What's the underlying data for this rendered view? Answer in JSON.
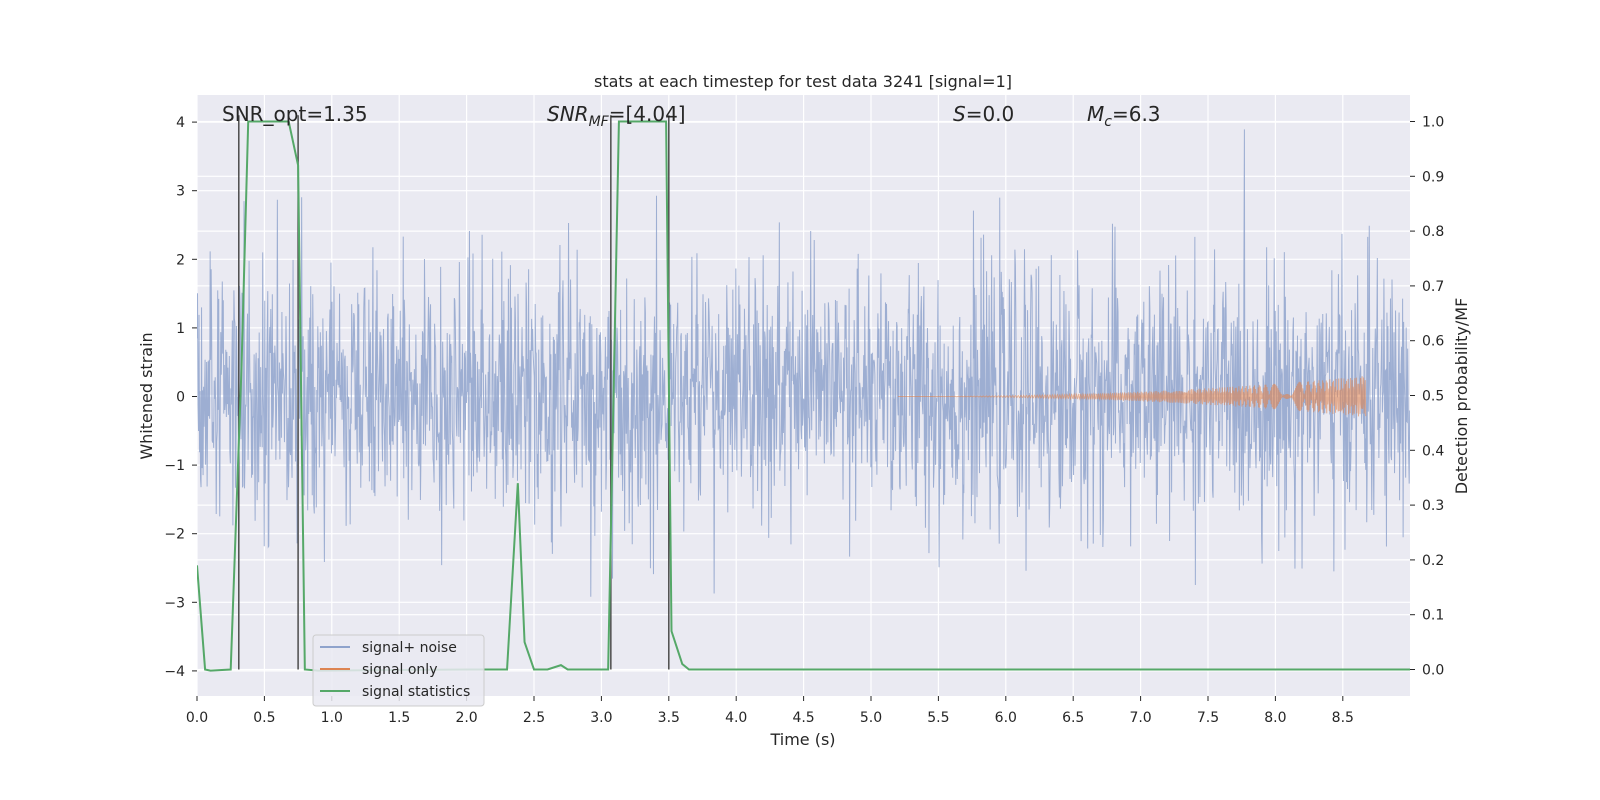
{
  "chart_data": {
    "type": "line",
    "title": "stats at each timestep for test data 3241 [signal=1]",
    "xlabel": "Time (s)",
    "ylabel_left": "Whitened strain",
    "ylabel_right": "Detection probability/MF",
    "xlim": [
      0.0,
      9.0
    ],
    "ylim_left": [
      -4.37,
      4.37
    ],
    "ylim_right": [
      -0.047,
      1.047
    ],
    "x_ticks": [
      "0.0",
      "0.5",
      "1.0",
      "1.5",
      "2.0",
      "2.5",
      "3.0",
      "3.5",
      "4.0",
      "4.5",
      "5.0",
      "5.5",
      "6.0",
      "6.5",
      "7.0",
      "7.5",
      "8.0",
      "8.5"
    ],
    "y_ticks_left": [
      "−4",
      "−3",
      "−2",
      "−1",
      "0",
      "1",
      "2",
      "3",
      "4"
    ],
    "y_ticks_right": [
      "0.0",
      "0.1",
      "0.2",
      "0.3",
      "0.4",
      "0.5",
      "0.6",
      "0.7",
      "0.8",
      "0.9",
      "1.0"
    ],
    "grid": true,
    "legend_position": "lower-left",
    "annotations": {
      "snr_opt": "SNR_opt=1.35",
      "snr_mf_base": "SNR",
      "snr_mf_sub": "MF",
      "snr_mf_value": "=[4.04]",
      "s_symbol": "S",
      "s_value": "=0.0",
      "mc_symbol": "M",
      "mc_sub": "c",
      "mc_value": "=6.3"
    },
    "vertical_markers_s": [
      0.31,
      0.75,
      3.07,
      3.5
    ],
    "series": [
      {
        "name": "signal+ noise",
        "color": "#8fa3cc",
        "description_axis": "left",
        "envelope_typical": 2.0,
        "envelope_peak": 4.0
      },
      {
        "name": "signal only",
        "color": "#dd8452",
        "description_axis": "left",
        "chirp_start": 5.2,
        "chirp_end": 8.67,
        "chirp_max_amplitude": 0.3
      },
      {
        "name": "signal statistics",
        "color": "#55a868",
        "description_axis": "right",
        "points": [
          [
            0.0,
            0.19
          ],
          [
            0.06,
            0.0
          ],
          [
            0.1,
            -0.002
          ],
          [
            0.25,
            0.0
          ],
          [
            0.33,
            0.55
          ],
          [
            0.38,
            1.0
          ],
          [
            0.68,
            1.0
          ],
          [
            0.75,
            0.92
          ],
          [
            0.8,
            0.0
          ],
          [
            0.9,
            -0.002
          ],
          [
            2.0,
            0.0
          ],
          [
            2.3,
            0.0
          ],
          [
            2.38,
            0.34
          ],
          [
            2.43,
            0.05
          ],
          [
            2.5,
            0.0
          ],
          [
            2.6,
            0.0
          ],
          [
            2.7,
            0.008
          ],
          [
            2.75,
            0.0
          ],
          [
            3.05,
            0.0
          ],
          [
            3.13,
            1.0
          ],
          [
            3.48,
            1.0
          ],
          [
            3.52,
            0.07
          ],
          [
            3.6,
            0.01
          ],
          [
            3.65,
            0.0
          ],
          [
            9.0,
            0.0
          ]
        ]
      }
    ]
  }
}
